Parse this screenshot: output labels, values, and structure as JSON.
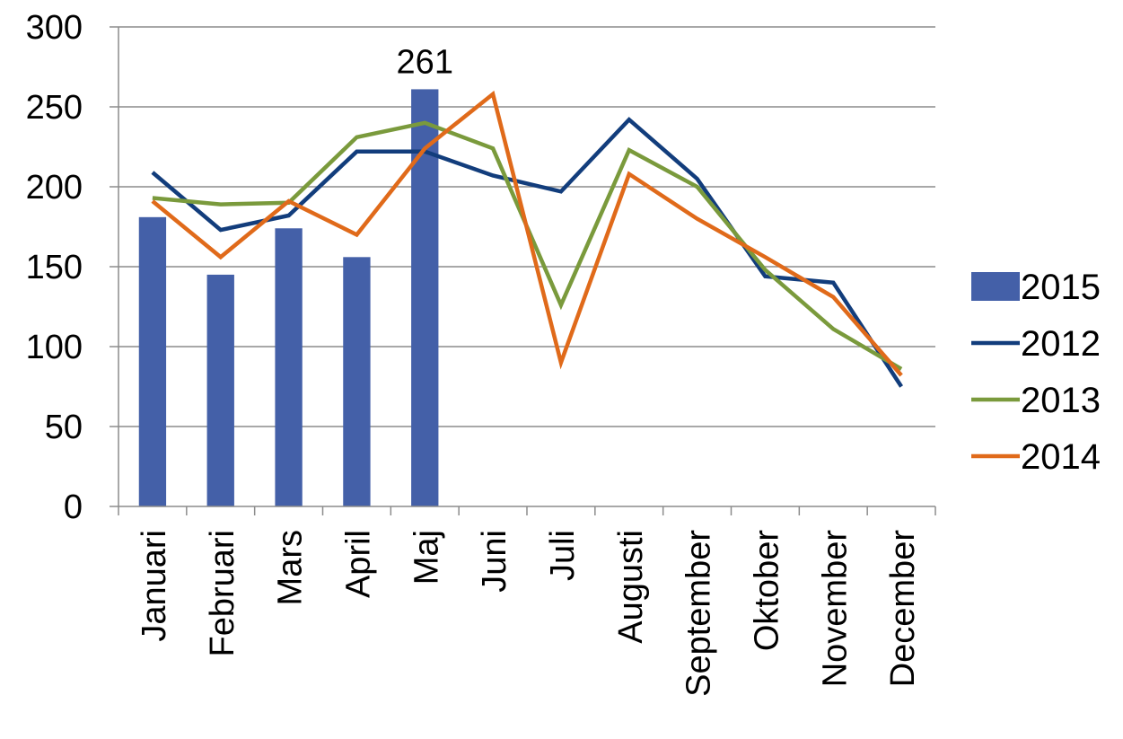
{
  "chart_data": {
    "type": "bar+line",
    "categories": [
      "Januari",
      "Februari",
      "Mars",
      "April",
      "Maj",
      "Juni",
      "Juli",
      "Augusti",
      "September",
      "Oktober",
      "November",
      "December"
    ],
    "bar_series": {
      "name": "2015",
      "color": "#4460A8",
      "values": [
        181,
        145,
        174,
        156,
        261
      ],
      "data_labels": [
        {
          "index": 4,
          "text": "261"
        }
      ]
    },
    "line_series": [
      {
        "name": "2012",
        "color": "#123D7C",
        "values": [
          209,
          173,
          182,
          222,
          222,
          207,
          197,
          242,
          205,
          144,
          140,
          75
        ]
      },
      {
        "name": "2013",
        "color": "#7A9A3C",
        "values": [
          193,
          189,
          190,
          231,
          240,
          224,
          126,
          223,
          200,
          148,
          111,
          86
        ]
      },
      {
        "name": "2014",
        "color": "#E06A1A",
        "values": [
          191,
          156,
          191,
          170,
          224,
          258,
          90,
          208,
          180,
          156,
          131,
          82
        ]
      }
    ],
    "legend_order": [
      "2015",
      "2012",
      "2013",
      "2014"
    ],
    "legend_position": "right",
    "ylim": [
      0,
      300
    ],
    "yticks": [
      "0",
      "50",
      "100",
      "150",
      "200",
      "250",
      "300"
    ],
    "grid": true
  }
}
